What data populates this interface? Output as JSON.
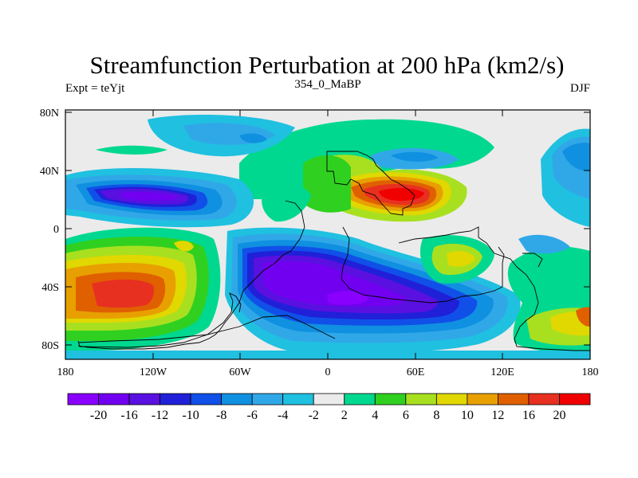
{
  "header": {
    "title": "Streamfunction Perturbation at 200 hPa (km2/s)",
    "left": "Expt = teYjt",
    "center": "354_0_MaBP",
    "right": "DJF"
  },
  "axes": {
    "lat_labels": [
      "80N",
      "40N",
      "0",
      "40S",
      "80S"
    ],
    "lon_labels": [
      "180",
      "120W",
      "60W",
      "0",
      "60E",
      "120E",
      "180"
    ]
  },
  "colorbar": {
    "labels": [
      "-20",
      "-16",
      "-12",
      "-10",
      "-8",
      "-6",
      "-4",
      "-2",
      "2",
      "4",
      "6",
      "8",
      "10",
      "12",
      "16",
      "20"
    ],
    "colors": [
      "#8a00ff",
      "#7200f0",
      "#5a10e0",
      "#2020d8",
      "#1050e8",
      "#1090e0",
      "#30a8e8",
      "#20c0e0",
      "#ebebeb",
      "#00d890",
      "#30d020",
      "#a8e020",
      "#e0d800",
      "#e8a000",
      "#e06000",
      "#e83020",
      "#f00000"
    ]
  }
}
